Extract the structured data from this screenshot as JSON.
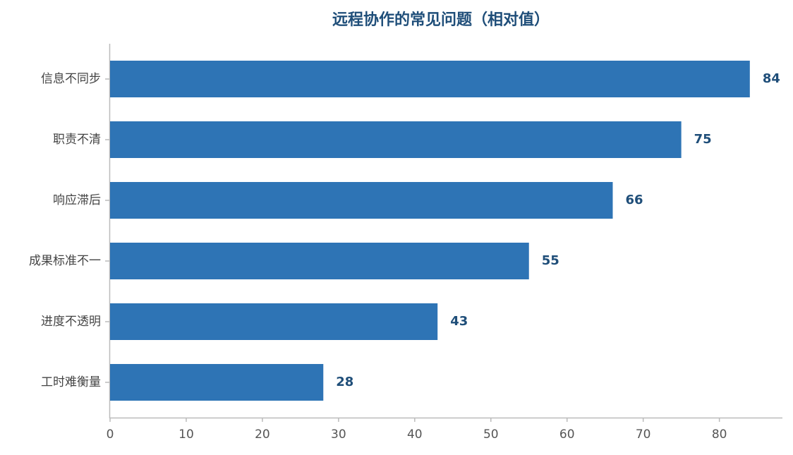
{
  "chart_data": {
    "type": "barh",
    "title": "远程协作的常见问题（相对值）",
    "categories": [
      "信息不同步",
      "职责不清",
      "响应滞后",
      "成果标准不一",
      "进度不透明",
      "工时难衡量"
    ],
    "values": [
      84,
      75,
      66,
      55,
      43,
      28
    ],
    "color": "#2e74b5",
    "xlim": [
      0,
      88
    ],
    "xticks": [
      0,
      10,
      20,
      30,
      40,
      50,
      60,
      70,
      80
    ],
    "grid": false
  }
}
